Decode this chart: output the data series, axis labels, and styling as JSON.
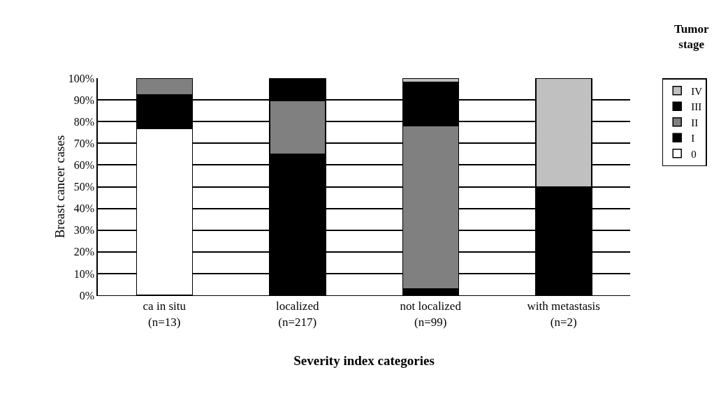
{
  "chart_data": {
    "type": "bar",
    "stacked": true,
    "xlabel": "Severity index categories",
    "ylabel": "Breast cancer cases",
    "legend_title": "Tumor stage",
    "categories": [
      "ca in situ\n(n=13)",
      "localized\n(n=217)",
      "not localized\n(n=99)",
      "with metastasis\n(n=2)"
    ],
    "series": [
      {
        "name": "0",
        "color": "#ffffff",
        "values": [
          76.9,
          null,
          null,
          null
        ]
      },
      {
        "name": "I",
        "color": "#000000",
        "values": [
          15.4,
          65,
          3,
          50
        ]
      },
      {
        "name": "II",
        "color": "#808080",
        "values": [
          7.7,
          24.6,
          75,
          null
        ]
      },
      {
        "name": "III",
        "color": "#000000",
        "values": [
          null,
          10.4,
          20,
          null
        ]
      },
      {
        "name": "IV",
        "color": "#c0c0c0",
        "values": [
          null,
          null,
          2,
          50
        ]
      }
    ],
    "ylim": [
      0,
      100
    ],
    "yticks": [
      {
        "value": 0,
        "label": "0%"
      },
      {
        "value": 10,
        "label": "10%"
      },
      {
        "value": 20,
        "label": "20%"
      },
      {
        "value": 30,
        "label": "30%"
      },
      {
        "value": 40,
        "label": "40%"
      },
      {
        "value": 50,
        "label": "50%"
      },
      {
        "value": 60,
        "label": "60%"
      },
      {
        "value": 70,
        "label": "70%"
      },
      {
        "value": 80,
        "label": "80%"
      },
      {
        "value": 90,
        "label": "90%"
      },
      {
        "value": 100,
        "label": "100%"
      }
    ],
    "grid": "y",
    "legend": "right"
  }
}
